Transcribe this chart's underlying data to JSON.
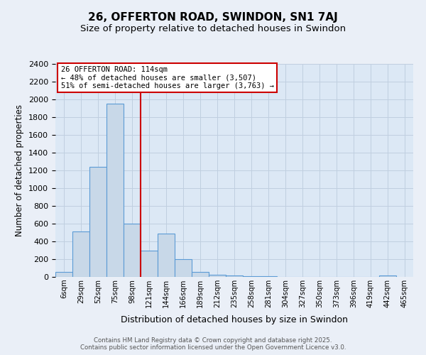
{
  "title": "26, OFFERTON ROAD, SWINDON, SN1 7AJ",
  "subtitle": "Size of property relative to detached houses in Swindon",
  "xlabel": "Distribution of detached houses by size in Swindon",
  "ylabel": "Number of detached properties",
  "bin_labels": [
    "6sqm",
    "29sqm",
    "52sqm",
    "75sqm",
    "98sqm",
    "121sqm",
    "144sqm",
    "166sqm",
    "189sqm",
    "212sqm",
    "235sqm",
    "258sqm",
    "281sqm",
    "304sqm",
    "327sqm",
    "350sqm",
    "373sqm",
    "396sqm",
    "419sqm",
    "442sqm",
    "465sqm"
  ],
  "bar_heights": [
    60,
    510,
    1240,
    1950,
    600,
    300,
    490,
    200,
    60,
    25,
    15,
    10,
    5,
    2,
    1,
    0,
    0,
    0,
    0,
    20
  ],
  "bar_color": "#c8d8e8",
  "bar_edge_color": "#5b9bd5",
  "vline_color": "#cc0000",
  "vline_x": 4.5,
  "annotation_text": "26 OFFERTON ROAD: 114sqm\n← 48% of detached houses are smaller (3,507)\n51% of semi-detached houses are larger (3,763) →",
  "annotation_box_color": "#ffffff",
  "annotation_box_edge": "#cc0000",
  "ylim": [
    0,
    2400
  ],
  "yticks": [
    0,
    200,
    400,
    600,
    800,
    1000,
    1200,
    1400,
    1600,
    1800,
    2000,
    2200,
    2400
  ],
  "grid_color": "#c0cfe0",
  "plot_bg": "#dce8f5",
  "fig_bg": "#eaeff7",
  "footer": "Contains HM Land Registry data © Crown copyright and database right 2025.\nContains public sector information licensed under the Open Government Licence v3.0.",
  "title_fontsize": 11,
  "subtitle_fontsize": 9.5,
  "footer_fontsize": 6.2
}
